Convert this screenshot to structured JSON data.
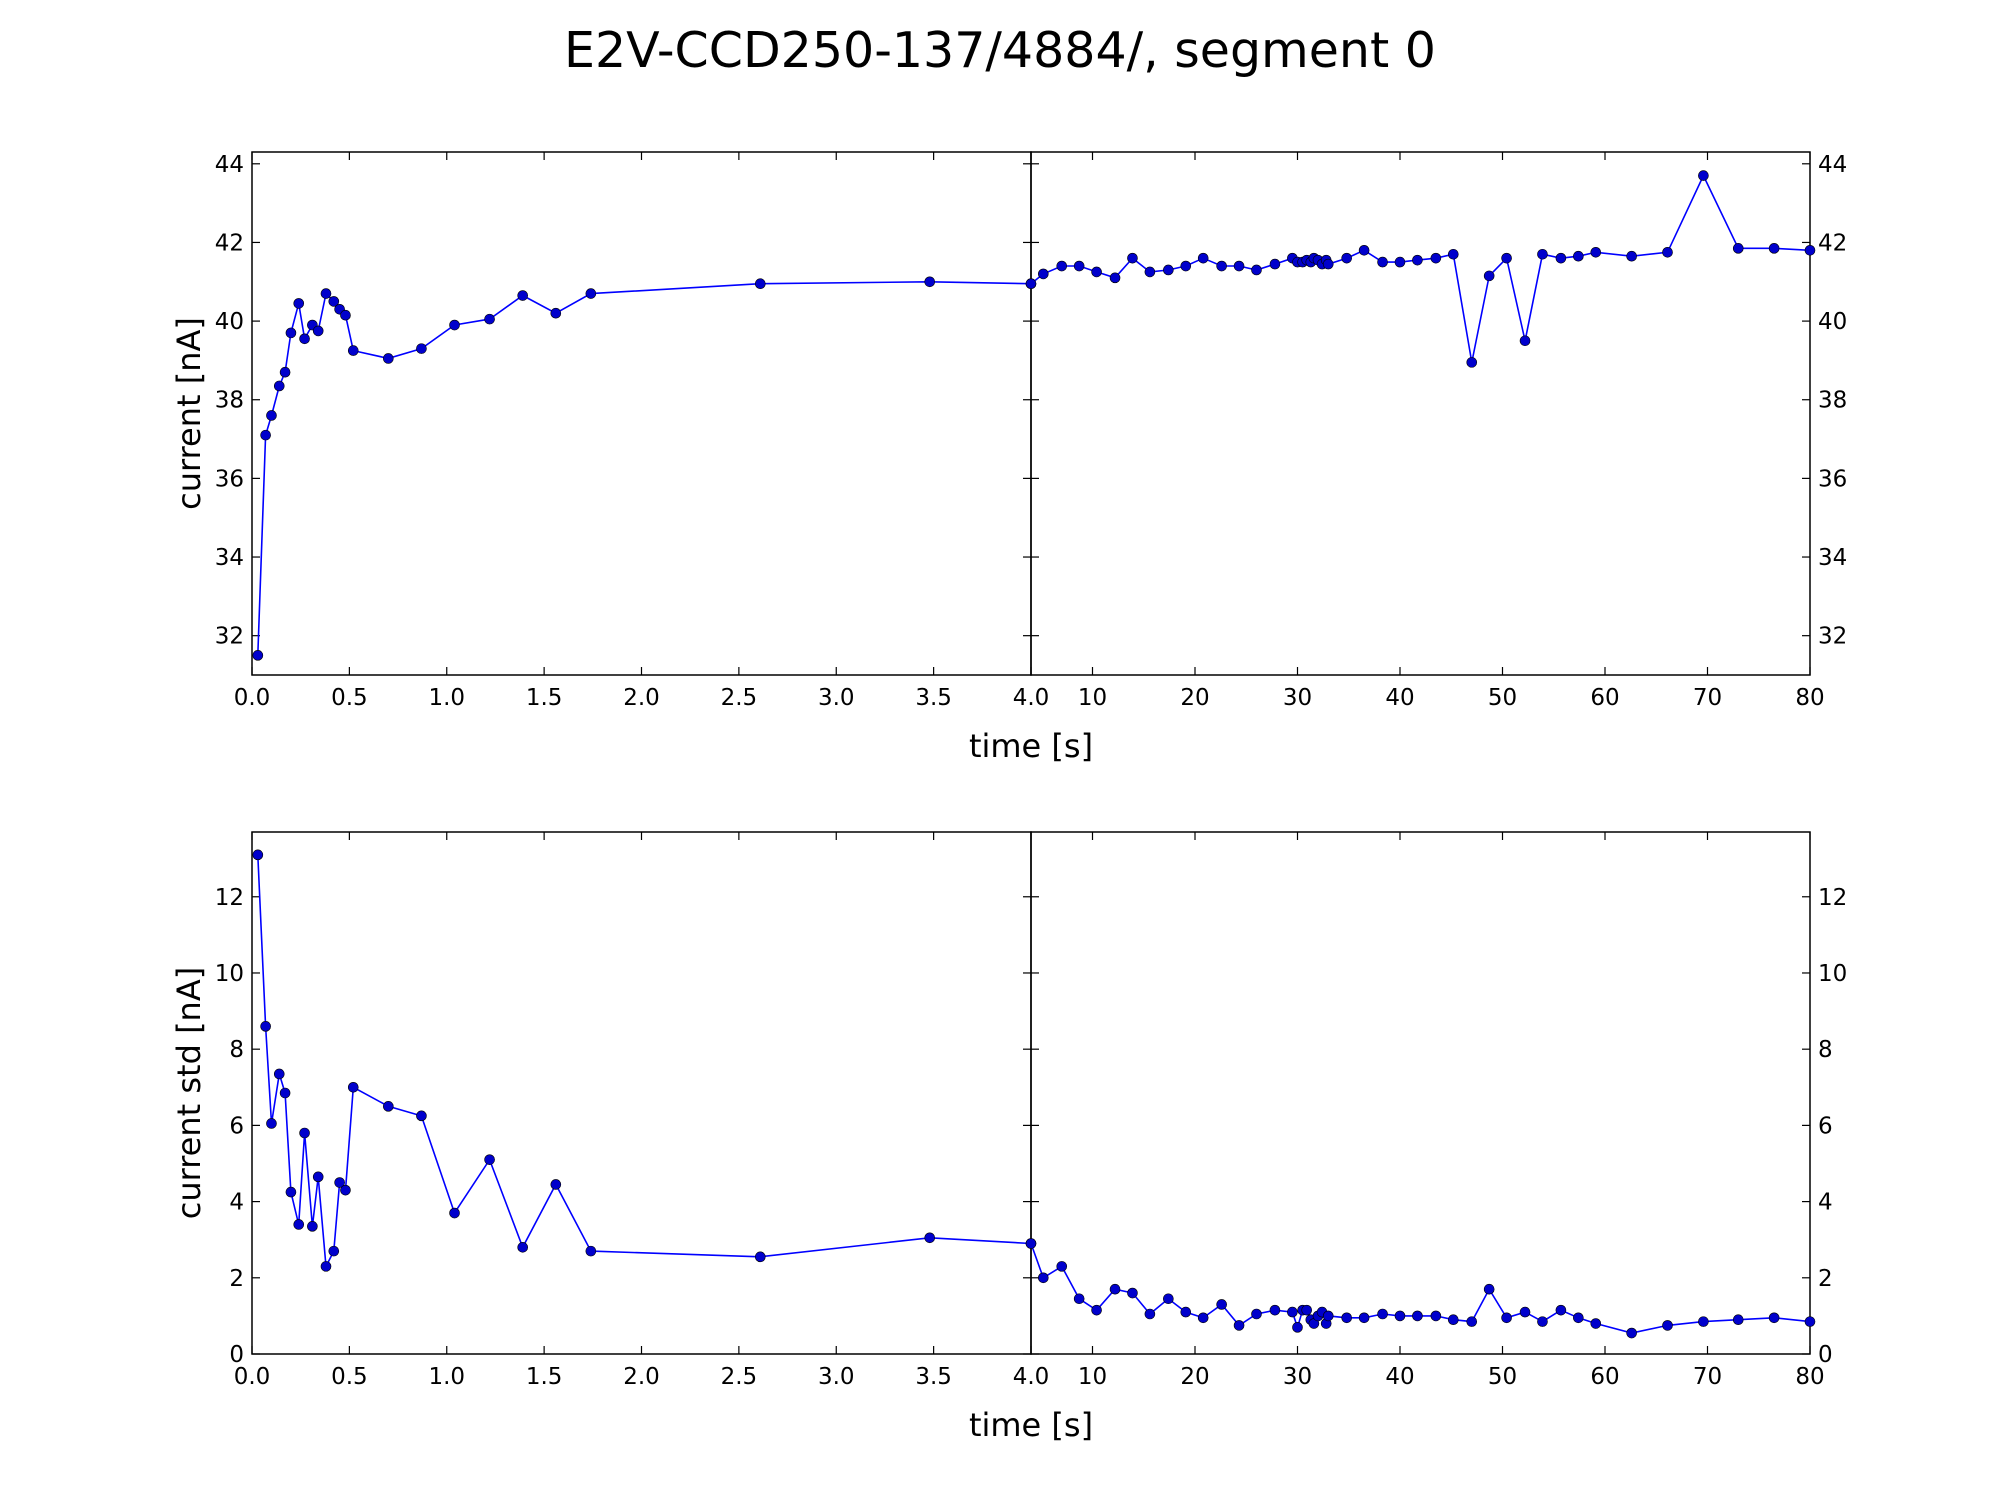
{
  "title": "E2V-CCD250-137/4884/, segment 0",
  "colors": {
    "line": "#0000ff",
    "marker": "#0000cc",
    "axes": "#000000",
    "background": "#ffffff"
  },
  "chart_data": [
    {
      "type": "line",
      "xlabel": "time [s]",
      "ylabel": "current [nA]",
      "grid": false,
      "ylim": [
        31,
        44.3
      ],
      "yticks": [
        32,
        34,
        36,
        38,
        40,
        42,
        44
      ],
      "left_panel": {
        "xlim": [
          0,
          4
        ],
        "xticks": [
          0,
          0.5,
          1,
          1.5,
          2,
          2.5,
          3,
          3.5,
          4
        ],
        "xtick_labels": [
          "0.0",
          "0.5",
          "1.0",
          "1.5",
          "2.0",
          "2.5",
          "3.0",
          "3.5",
          "4.0"
        ]
      },
      "right_panel": {
        "xlim": [
          4,
          80
        ],
        "xticks": [
          10,
          20,
          30,
          40,
          50,
          60,
          70,
          80
        ],
        "xtick_labels": [
          "10",
          "20",
          "30",
          "40",
          "50",
          "60",
          "70",
          "80"
        ]
      },
      "x": [
        0.03,
        0.07,
        0.1,
        0.14,
        0.17,
        0.2,
        0.24,
        0.27,
        0.31,
        0.34,
        0.38,
        0.42,
        0.45,
        0.48,
        0.52,
        0.7,
        0.87,
        1.04,
        1.22,
        1.39,
        1.56,
        1.74,
        2.61,
        3.48,
        4.0,
        5.2,
        7.0,
        8.7,
        10.4,
        12.2,
        13.9,
        15.6,
        17.4,
        19.1,
        20.8,
        22.6,
        24.3,
        26.0,
        27.8,
        29.5,
        30.0,
        30.5,
        30.9,
        31.3,
        31.6,
        32.0,
        32.4,
        32.8,
        33.0,
        34.8,
        36.5,
        38.3,
        40.0,
        41.7,
        43.5,
        45.2,
        47.0,
        48.7,
        50.4,
        52.2,
        53.9,
        55.7,
        57.4,
        59.1,
        62.6,
        66.1,
        69.6,
        73.0,
        76.5,
        80.0
      ],
      "y": [
        31.5,
        37.1,
        37.6,
        38.35,
        38.7,
        39.7,
        40.45,
        39.55,
        39.9,
        39.75,
        40.7,
        40.5,
        40.3,
        40.15,
        39.25,
        39.05,
        39.3,
        39.9,
        40.05,
        40.65,
        40.2,
        40.7,
        40.95,
        41.0,
        40.95,
        41.2,
        41.4,
        41.4,
        41.25,
        41.1,
        41.6,
        41.25,
        41.3,
        41.4,
        41.6,
        41.4,
        41.4,
        41.3,
        41.45,
        41.6,
        41.5,
        41.5,
        41.55,
        41.5,
        41.6,
        41.55,
        41.45,
        41.55,
        41.45,
        41.6,
        41.8,
        41.5,
        41.5,
        41.55,
        41.6,
        41.7,
        38.95,
        41.15,
        41.6,
        39.5,
        41.7,
        41.6,
        41.65,
        41.75,
        41.65,
        41.75,
        43.7,
        41.85,
        41.85,
        41.8
      ]
    },
    {
      "type": "line",
      "xlabel": "time [s]",
      "ylabel": "current std [nA]",
      "grid": false,
      "ylim": [
        0,
        13.7
      ],
      "yticks": [
        0,
        2,
        4,
        6,
        8,
        10,
        12
      ],
      "left_panel": {
        "xlim": [
          0,
          4
        ],
        "xticks": [
          0,
          0.5,
          1,
          1.5,
          2,
          2.5,
          3,
          3.5,
          4
        ],
        "xtick_labels": [
          "0.0",
          "0.5",
          "1.0",
          "1.5",
          "2.0",
          "2.5",
          "3.0",
          "3.5",
          "4.0"
        ]
      },
      "right_panel": {
        "xlim": [
          4,
          80
        ],
        "xticks": [
          10,
          20,
          30,
          40,
          50,
          60,
          70,
          80
        ],
        "xtick_labels": [
          "10",
          "20",
          "30",
          "40",
          "50",
          "60",
          "70",
          "80"
        ]
      },
      "x": [
        0.03,
        0.07,
        0.1,
        0.14,
        0.17,
        0.2,
        0.24,
        0.27,
        0.31,
        0.34,
        0.38,
        0.42,
        0.45,
        0.48,
        0.52,
        0.7,
        0.87,
        1.04,
        1.22,
        1.39,
        1.56,
        1.74,
        2.61,
        3.48,
        4.0,
        5.2,
        7.0,
        8.7,
        10.4,
        12.2,
        13.9,
        15.6,
        17.4,
        19.1,
        20.8,
        22.6,
        24.3,
        26.0,
        27.8,
        29.5,
        30.0,
        30.5,
        30.9,
        31.3,
        31.6,
        32.0,
        32.4,
        32.8,
        33.0,
        34.8,
        36.5,
        38.3,
        40.0,
        41.7,
        43.5,
        45.2,
        47.0,
        48.7,
        50.4,
        52.2,
        53.9,
        55.7,
        57.4,
        59.1,
        62.6,
        66.1,
        69.6,
        73.0,
        76.5,
        80.0
      ],
      "y": [
        13.1,
        8.6,
        6.05,
        7.35,
        6.85,
        4.25,
        3.4,
        5.8,
        3.35,
        4.65,
        2.3,
        2.7,
        4.5,
        4.3,
        7.0,
        6.5,
        6.25,
        3.7,
        5.1,
        2.8,
        4.45,
        2.7,
        2.55,
        3.05,
        2.9,
        2.0,
        2.3,
        1.45,
        1.15,
        1.7,
        1.6,
        1.05,
        1.45,
        1.1,
        0.95,
        1.3,
        0.75,
        1.05,
        1.15,
        1.1,
        0.7,
        1.15,
        1.15,
        0.9,
        0.8,
        1.0,
        1.1,
        0.8,
        1.0,
        0.95,
        0.95,
        1.05,
        1.0,
        1.0,
        1.0,
        0.9,
        0.85,
        1.7,
        0.95,
        1.1,
        0.85,
        1.15,
        0.95,
        0.8,
        0.55,
        0.75,
        0.85,
        0.9,
        0.95,
        0.85
      ]
    }
  ]
}
